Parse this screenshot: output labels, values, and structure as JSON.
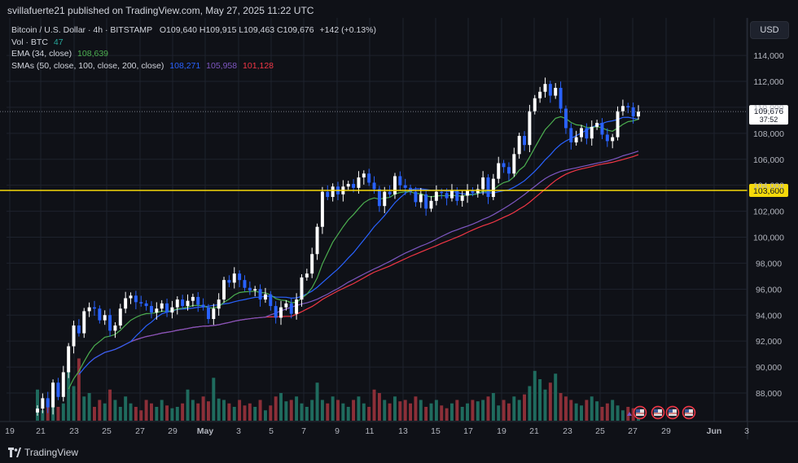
{
  "header": {
    "publisher_line": "svillafuerte21 published on TradingView.com, May 27, 2025 11:22 UTC"
  },
  "legend": {
    "symbol": "Bitcoin / U.S. Dollar · 4h · BITSTAMP",
    "ohlc": "O109,640  H109,915  L109,463  C109,676",
    "change": "+142 (+0.13%)",
    "vol_label": "Vol · BTC",
    "vol_value": "47",
    "ema_label": "EMA (34, close)",
    "ema_value": "108,639",
    "sma_label": "SMAs (50, close, 100, close, 200, close)",
    "sma50_value": "108,271",
    "sma100_value": "105,958",
    "sma200_value": "101,128"
  },
  "price_scale": {
    "currency_button": "USD",
    "current_price": "109,676",
    "countdown": "37:52",
    "level_label": "103,600"
  },
  "colors": {
    "background": "#0f1117",
    "up": "#ffffff",
    "down": "#2962ff",
    "ema": "#4caf50",
    "sma50": "#2962ff",
    "sma100": "#7e57c2",
    "sma200": "#f23645",
    "level": "#f5d90a",
    "vol_up": "#1f6b5e",
    "vol_down": "#8c2f38"
  },
  "footer": {
    "brand": "TradingView"
  },
  "chart_data": {
    "type": "candlestick",
    "y_ticks": [
      "88,000",
      "90,000",
      "92,000",
      "94,000",
      "96,000",
      "98,000",
      "100,000",
      "102,000",
      "104,000",
      "106,000",
      "108,000",
      "110,000",
      "112,000",
      "114,000"
    ],
    "ylim": [
      86500,
      115500
    ],
    "x_ticks": [
      "19",
      "21",
      "23",
      "25",
      "27",
      "29",
      "May",
      "3",
      "5",
      "7",
      "9",
      "11",
      "13",
      "15",
      "17",
      "19",
      "21",
      "23",
      "25",
      "27",
      "29",
      "Jun",
      "3"
    ],
    "horizontal_level": 103600,
    "current_price": 109676,
    "closes": [
      86800,
      87600,
      86900,
      88800,
      87700,
      89600,
      91600,
      93200,
      92600,
      94300,
      94600,
      94500,
      93600,
      94000,
      92800,
      93200,
      94500,
      95300,
      95500,
      95000,
      94900,
      94700,
      94200,
      94500,
      94900,
      94200,
      94600,
      95200,
      94700,
      95100,
      95400,
      94800,
      94600,
      93700,
      94500,
      95200,
      96700,
      96500,
      97200,
      96700,
      96100,
      95900,
      96000,
      95200,
      95600,
      94700,
      93800,
      94600,
      94900,
      94100,
      95200,
      96900,
      97200,
      98700,
      100800,
      103500,
      103100,
      103900,
      103300,
      103900,
      104100,
      103800,
      104600,
      104900,
      104200,
      103700,
      102400,
      103500,
      103300,
      104700,
      104000,
      103800,
      103500,
      102700,
      103300,
      102200,
      102800,
      103500,
      103400,
      103000,
      103600,
      102800,
      103200,
      103600,
      103400,
      103700,
      104600,
      103100,
      104500,
      105700,
      105400,
      104900,
      106400,
      107800,
      107100,
      109700,
      110700,
      111200,
      111800,
      110900,
      111500,
      109900,
      108400,
      107300,
      107700,
      108400,
      107600,
      108500,
      108800,
      107900,
      107400,
      107700,
      109700,
      110100,
      110000,
      109300,
      109676
    ],
    "volume_relative": [
      0.45,
      0.15,
      0.3,
      0.55,
      0.2,
      0.25,
      0.72,
      0.5,
      0.9,
      0.35,
      0.4,
      0.2,
      0.3,
      0.25,
      0.45,
      0.3,
      0.2,
      0.35,
      0.25,
      0.2,
      0.15,
      0.3,
      0.25,
      0.2,
      0.3,
      0.22,
      0.18,
      0.2,
      0.25,
      0.45,
      0.3,
      0.25,
      0.35,
      0.28,
      0.62,
      0.32,
      0.3,
      0.25,
      0.2,
      0.3,
      0.22,
      0.25,
      0.2,
      0.3,
      0.15,
      0.22,
      0.35,
      0.4,
      0.28,
      0.3,
      0.35,
      0.25,
      0.2,
      0.3,
      0.55,
      0.3,
      0.25,
      0.35,
      0.3,
      0.25,
      0.2,
      0.3,
      0.35,
      0.25,
      0.2,
      0.45,
      0.4,
      0.3,
      0.25,
      0.35,
      0.28,
      0.3,
      0.25,
      0.35,
      0.3,
      0.2,
      0.25,
      0.3,
      0.22,
      0.18,
      0.25,
      0.3,
      0.2,
      0.25,
      0.3,
      0.28,
      0.3,
      0.35,
      0.4,
      0.22,
      0.3,
      0.25,
      0.35,
      0.3,
      0.38,
      0.5,
      0.72,
      0.6,
      0.45,
      0.55,
      0.68,
      0.4,
      0.35,
      0.3,
      0.25,
      0.22,
      0.3,
      0.35,
      0.28,
      0.2,
      0.25,
      0.3,
      0.22,
      0.15,
      0.2,
      0.18,
      0.12
    ]
  }
}
